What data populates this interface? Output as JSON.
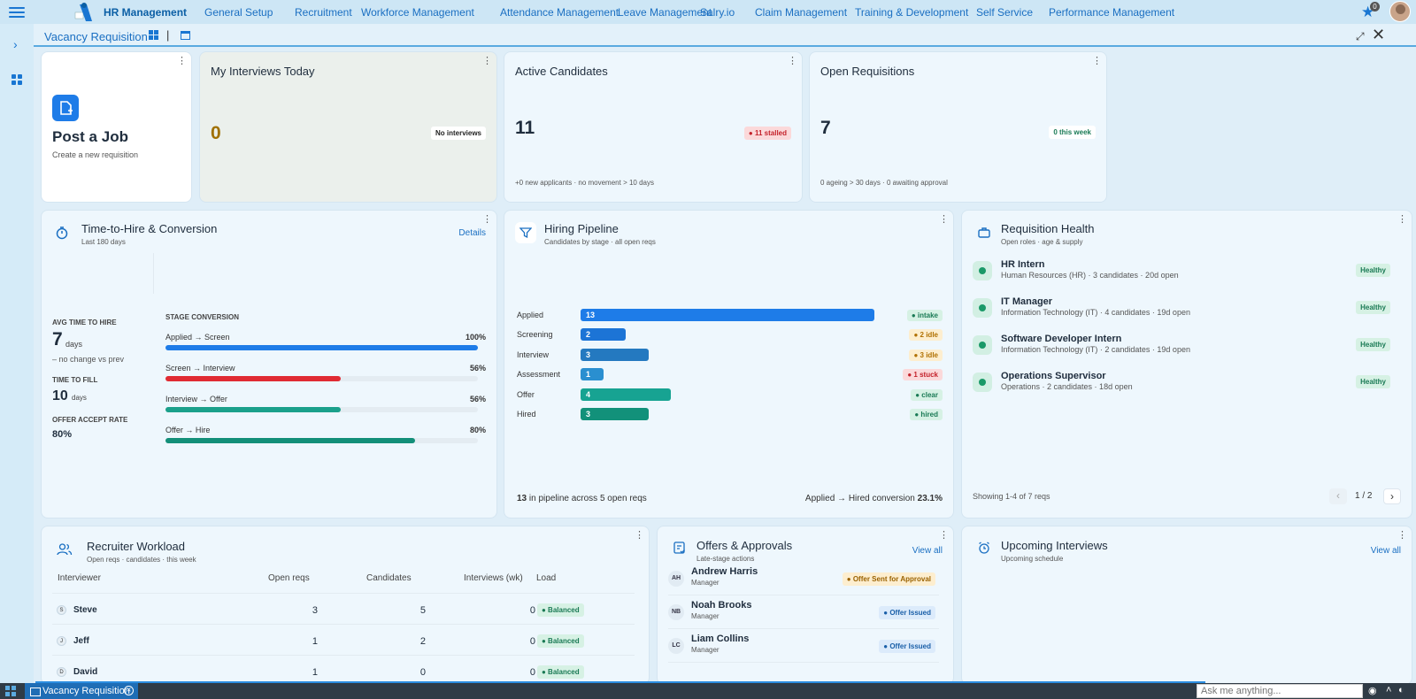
{
  "app": {
    "brand": "HR Management",
    "menu": [
      "General Setup",
      "Recruitment",
      "Workforce Management",
      "Attendance Management",
      "Leave Management",
      "Salry.io",
      "Claim Management",
      "Training & Development",
      "Self Service",
      "Performance Management"
    ],
    "star_count": "0"
  },
  "tab": {
    "title": "Vacancy Requisition",
    "separator": "|"
  },
  "post_job": {
    "title": "Post a Job",
    "subtitle": "Create a new requisition"
  },
  "kpis": {
    "interviews": {
      "title": "My Interviews Today",
      "value": "0",
      "pill": "No interviews"
    },
    "candidates": {
      "title": "Active Candidates",
      "value": "11",
      "pill": "● 11 stalled",
      "sub": "+0 new applicants · no movement > 10 days"
    },
    "requisitions": {
      "title": "Open Requisitions",
      "value": "7",
      "pill": "0 this week",
      "sub": "0 ageing > 30 days · 0 awaiting approval"
    }
  },
  "time_to_hire": {
    "title": "Time-to-Hire & Conversion",
    "subtitle": "Last 180 days",
    "details": "Details",
    "avg_label": "AVG TIME TO HIRE",
    "avg_value": "7",
    "avg_unit": "days",
    "avg_note": "– no change vs prev",
    "fill_label": "TIME TO FILL",
    "fill_value": "10",
    "fill_unit": "days",
    "accept_label": "OFFER ACCEPT RATE",
    "accept_value": "80%",
    "stage_title": "STAGE CONVERSION",
    "stages": [
      {
        "label": "Applied → Screen",
        "pct": "100%",
        "value": 100,
        "color": "#1e7ce8"
      },
      {
        "label": "Screen → Interview",
        "pct": "56%",
        "value": 56,
        "color": "#e02b33"
      },
      {
        "label": "Interview → Offer",
        "pct": "56%",
        "value": 56,
        "color": "#1aa08b"
      },
      {
        "label": "Offer → Hire",
        "pct": "80%",
        "value": 80,
        "color": "#138f79"
      }
    ]
  },
  "pipeline": {
    "title": "Hiring Pipeline",
    "subtitle": "Candidates by stage · all open reqs",
    "max": 13,
    "stages": [
      {
        "label": "Applied",
        "value": 13,
        "text": "13",
        "color": "#1e7ce8",
        "pill": "● intake",
        "pill_bg": "#d6f1e4",
        "pill_fg": "#1a7a55"
      },
      {
        "label": "Screening",
        "value": 2,
        "text": "2",
        "color": "#1c74d6",
        "pill": "● 2 idle",
        "pill_bg": "#fdeecf",
        "pill_fg": "#b07000"
      },
      {
        "label": "Interview",
        "value": 3,
        "text": "3",
        "color": "#2479c0",
        "pill": "● 3 idle",
        "pill_bg": "#fdeecf",
        "pill_fg": "#b07000"
      },
      {
        "label": "Assessment",
        "value": 1,
        "text": "1",
        "color": "#2a8fd0",
        "pill": "● 1 stuck",
        "pill_bg": "#fbd9da",
        "pill_fg": "#c4222b"
      },
      {
        "label": "Offer",
        "value": 4,
        "text": "4",
        "color": "#17a392",
        "pill": "● clear",
        "pill_bg": "#d6f1e4",
        "pill_fg": "#1a7a55"
      },
      {
        "label": "Hired",
        "value": 3,
        "text": "3",
        "color": "#12917a",
        "pill": "● hired",
        "pill_bg": "#d6f1e4",
        "pill_fg": "#1a7a55"
      }
    ],
    "footer_count": "13",
    "footer_text": "in pipeline across 5 open reqs",
    "conversion_label": "Applied → Hired conversion",
    "conversion_value": "23.1%"
  },
  "req_health": {
    "title": "Requisition Health",
    "subtitle": "Open roles · age & supply",
    "items": [
      {
        "name": "HR Intern",
        "sub": "Human Resources (HR) · 3 candidates · 20d open",
        "status": "Healthy"
      },
      {
        "name": "IT Manager",
        "sub": "Information Technology (IT) · 4 candidates · 19d open",
        "status": "Healthy"
      },
      {
        "name": "Software Developer Intern",
        "sub": "Information Technology (IT) · 2 candidates · 19d open",
        "status": "Healthy"
      },
      {
        "name": "Operations Supervisor",
        "sub": "Operations · 2 candidates · 18d open",
        "status": "Healthy"
      }
    ],
    "showing": "Showing 1-4 of 7 reqs",
    "page": "1 / 2"
  },
  "workload": {
    "title": "Recruiter Workload",
    "subtitle": "Open reqs · candidates · this week",
    "headers": {
      "interviewer": "Interviewer",
      "open_reqs": "Open reqs",
      "candidates": "Candidates",
      "interviews": "Interviews (wk)",
      "load": "Load"
    },
    "rows": [
      {
        "initial": "S",
        "name": "Steve",
        "open_reqs": "3",
        "candidates": "5",
        "interviews": "0",
        "load": "● Balanced"
      },
      {
        "initial": "J",
        "name": "Jeff",
        "open_reqs": "1",
        "candidates": "2",
        "interviews": "0",
        "load": "● Balanced"
      },
      {
        "initial": "D",
        "name": "David",
        "open_reqs": "1",
        "candidates": "0",
        "interviews": "0",
        "load": "● Balanced"
      }
    ]
  },
  "offers": {
    "title": "Offers & Approvals",
    "subtitle": "Late-stage actions",
    "view_all": "View all",
    "rows": [
      {
        "initials": "AH",
        "name": "Andrew Harris",
        "role": "Manager",
        "status": "● Offer Sent for Approval",
        "bg": "#fdeecf",
        "fg": "#9a6200"
      },
      {
        "initials": "NB",
        "name": "Noah Brooks",
        "role": "Manager",
        "status": "● Offer Issued",
        "bg": "#dcebfb",
        "fg": "#1a5fa8"
      },
      {
        "initials": "LC",
        "name": "Liam Collins",
        "role": "Manager",
        "status": "● Offer Issued",
        "bg": "#dcebfb",
        "fg": "#1a5fa8"
      }
    ]
  },
  "upcoming": {
    "title": "Upcoming Interviews",
    "subtitle": "Upcoming schedule",
    "view_all": "View all"
  },
  "taskbar": {
    "tab": "Vacancy Requisition",
    "ask_placeholder": "Ask me anything..."
  }
}
